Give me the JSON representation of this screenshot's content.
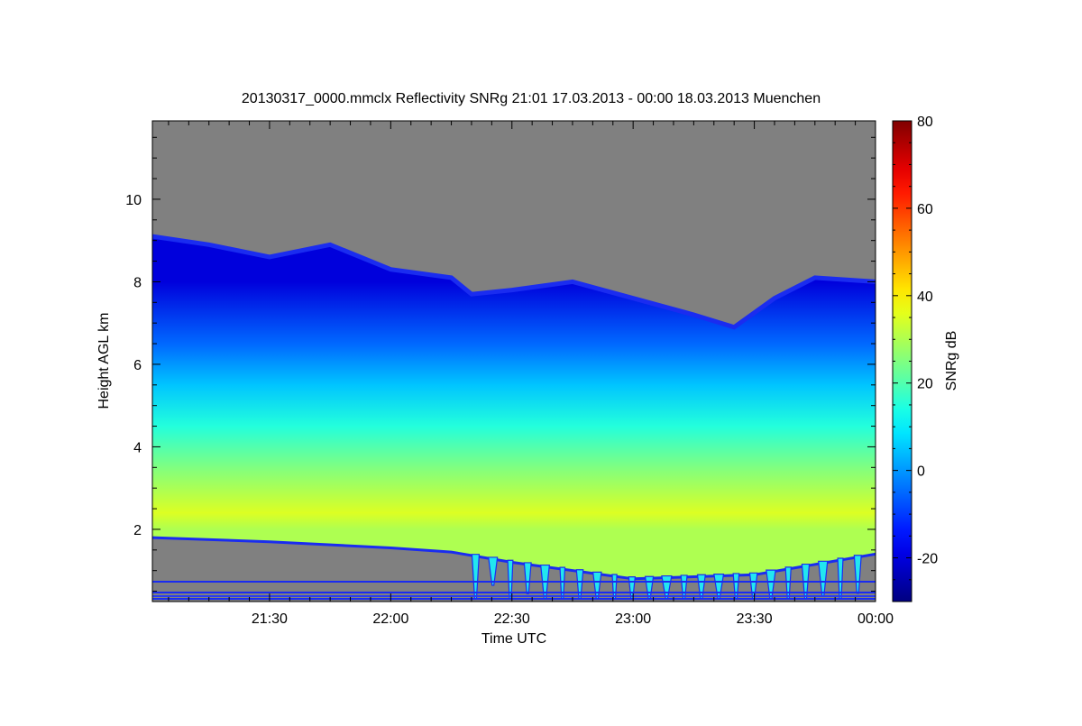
{
  "chart_data": {
    "type": "heatmap",
    "title": "20130317_0000.mmclx Reflectivity SNRg   21:01 17.03.2013 - 00:00 18.03.2013 Muenchen",
    "xlabel": "Time UTC",
    "ylabel": "Height AGL km",
    "x_range": [
      "21:01",
      "00:00"
    ],
    "x_ticks": [
      "21:30",
      "22:00",
      "22:30",
      "23:00",
      "23:30",
      "00:00"
    ],
    "ylim": [
      0.25,
      11.9
    ],
    "y_ticks": [
      "2",
      "4",
      "6",
      "8",
      "10"
    ],
    "colorbar": {
      "label": "SNRg dB",
      "range": [
        -30,
        80
      ],
      "ticks": [
        "-20",
        "0",
        "20",
        "40",
        "60",
        "80"
      ],
      "colormap": "jet"
    },
    "background_color": "#808080",
    "cloud_top_km": [
      [
        "21:01",
        9.1
      ],
      [
        "21:15",
        8.9
      ],
      [
        "21:30",
        8.6
      ],
      [
        "21:45",
        8.9
      ],
      [
        "22:00",
        8.3
      ],
      [
        "22:15",
        8.1
      ],
      [
        "22:20",
        7.7
      ],
      [
        "22:30",
        7.8
      ],
      [
        "22:45",
        8.0
      ],
      [
        "23:00",
        7.6
      ],
      [
        "23:15",
        7.2
      ],
      [
        "23:25",
        6.9
      ],
      [
        "23:35",
        7.6
      ],
      [
        "23:45",
        8.1
      ],
      [
        "00:00",
        8.0
      ]
    ],
    "cloud_base_km": [
      [
        "21:01",
        1.8
      ],
      [
        "21:30",
        1.7
      ],
      [
        "22:00",
        1.55
      ],
      [
        "22:15",
        1.45
      ],
      [
        "22:30",
        1.2
      ],
      [
        "23:00",
        0.8
      ],
      [
        "23:30",
        0.9
      ],
      [
        "00:00",
        1.4
      ]
    ],
    "reflectivity_profile_dB": [
      [
        8.0,
        -20
      ],
      [
        6.5,
        -5
      ],
      [
        5.5,
        5
      ],
      [
        4.5,
        15
      ],
      [
        3.5,
        25
      ],
      [
        2.4,
        35
      ],
      [
        2.0,
        30
      ]
    ]
  }
}
